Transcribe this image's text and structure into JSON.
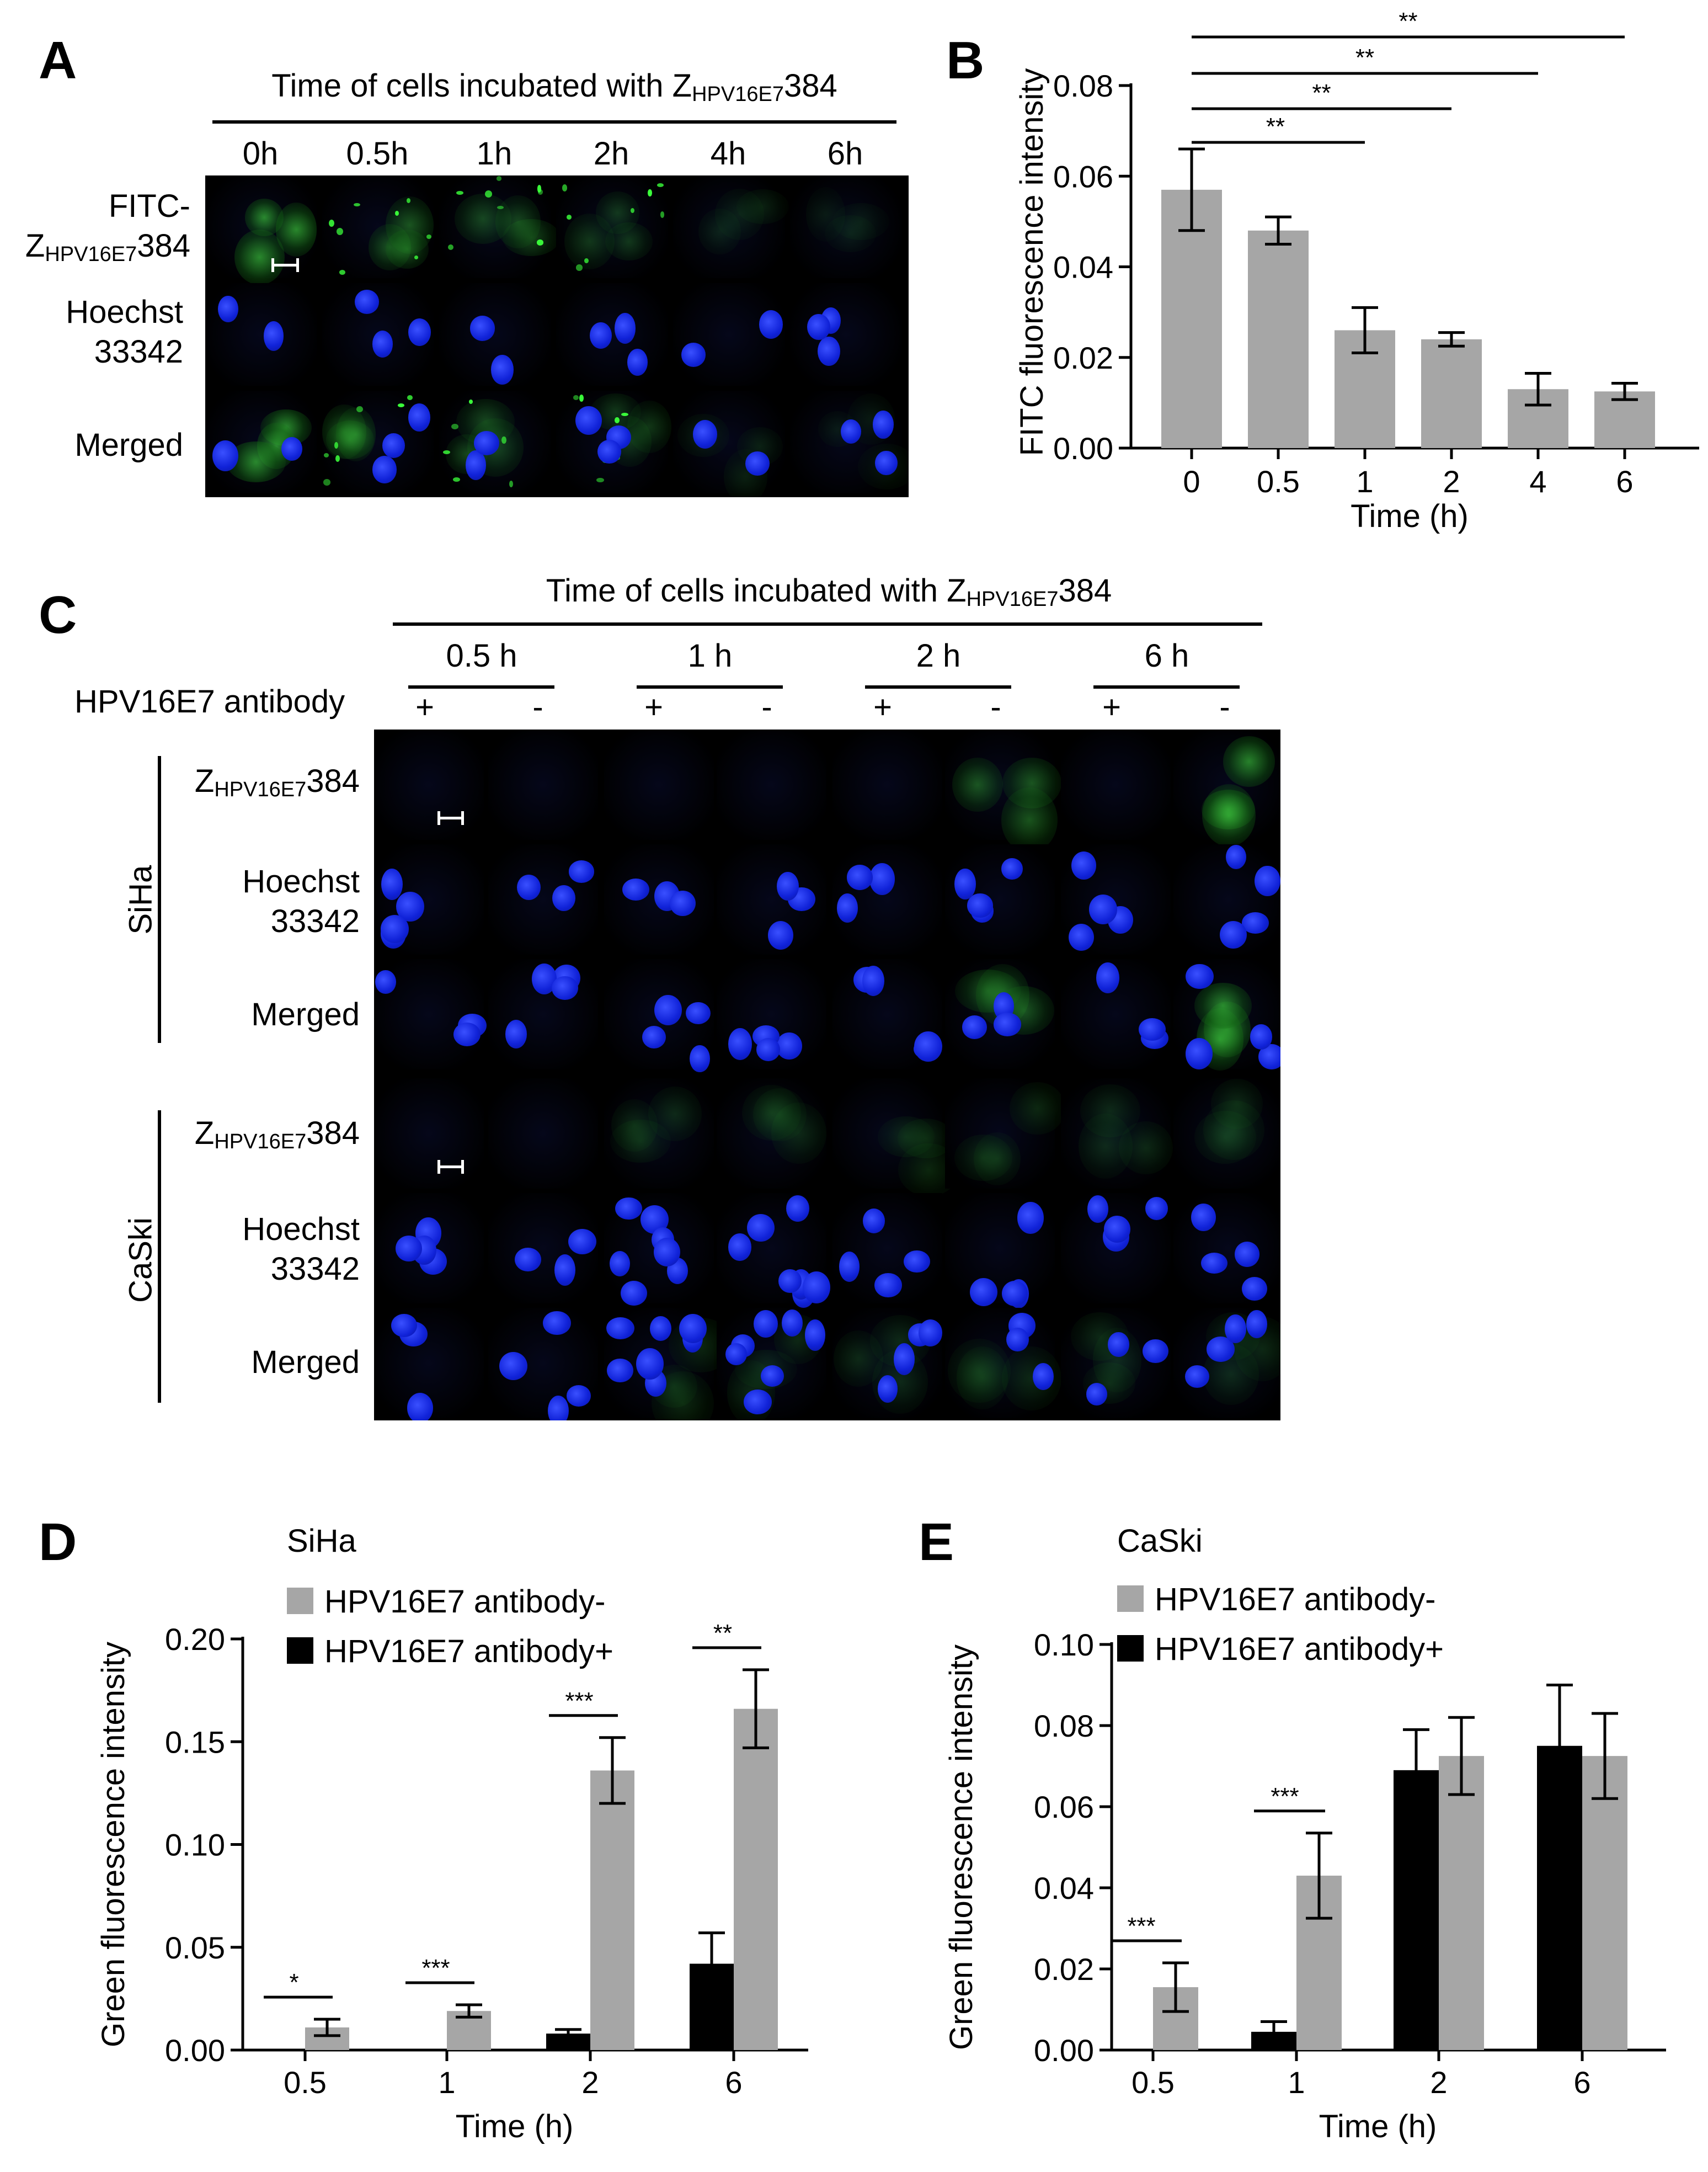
{
  "panels": {
    "A": {
      "letter": "A",
      "title_prefix": "Time of cells incubated with Z",
      "title_sub": "HPV16E7",
      "title_suffix": "384",
      "times": [
        "0h",
        "0.5h",
        "1h",
        "2h",
        "4h",
        "6h"
      ],
      "rows": [
        {
          "line1": "FITC-",
          "line2_prefix": "Z",
          "line2_sub": "HPV16E7",
          "line2_suffix": "384"
        },
        {
          "line1": "Hoechst",
          "line2": "33342"
        },
        {
          "line1": "Merged"
        }
      ]
    },
    "C": {
      "letter": "C",
      "title_prefix": "Time of cells incubated with Z",
      "title_sub": "HPV16E7",
      "title_suffix": "384",
      "times": [
        "0.5 h",
        "1 h",
        "2 h",
        "6 h"
      ],
      "antibody_label": "HPV16E7 antibody",
      "signs": [
        "+",
        "-",
        "+",
        "-",
        "+",
        "-",
        "+",
        "-"
      ],
      "cell_lines": [
        "SiHa",
        "CaSki"
      ],
      "rows": [
        {
          "prefix": "Z",
          "sub": "HPV16E7",
          "suffix": "384"
        },
        {
          "line1": "Hoechst",
          "line2": "33342"
        },
        {
          "line1": "Merged"
        }
      ]
    },
    "B_letter": "B",
    "D_letter": "D",
    "E_letter": "E"
  },
  "chart_data": [
    {
      "id": "B",
      "type": "bar",
      "ylabel": "FITC fluorescence intensity",
      "xlabel": "Time (h)",
      "categories": [
        "0",
        "0.5",
        "1",
        "2",
        "4",
        "6"
      ],
      "values": [
        0.057,
        0.048,
        0.026,
        0.024,
        0.013,
        0.0125
      ],
      "errors": [
        0.009,
        0.003,
        0.005,
        0.0015,
        0.0035,
        0.0018
      ],
      "ylim": [
        0,
        0.08
      ],
      "yticks": [
        "0.00",
        "0.02",
        "0.04",
        "0.06",
        "0.08"
      ],
      "bar_color": "#a6a6a6",
      "significance": [
        {
          "from": "0",
          "to": "1",
          "label": "**"
        },
        {
          "from": "0",
          "to": "2",
          "label": "**"
        },
        {
          "from": "0",
          "to": "4",
          "label": "**"
        },
        {
          "from": "0",
          "to": "6",
          "label": "**"
        }
      ]
    },
    {
      "id": "D",
      "type": "bar",
      "title": "SiHa",
      "ylabel": "Green fluorescence intensity",
      "xlabel": "Time (h)",
      "categories": [
        "0.5",
        "1",
        "2",
        "6"
      ],
      "series": [
        {
          "name": "HPV16E7 antibody+",
          "color": "#000000",
          "values": [
            0,
            0,
            0.008,
            0.042
          ],
          "errors": [
            0,
            0,
            0.002,
            0.015
          ]
        },
        {
          "name": "HPV16E7 antibody-",
          "color": "#a6a6a6",
          "values": [
            0.011,
            0.019,
            0.136,
            0.166
          ],
          "errors": [
            0.004,
            0.003,
            0.016,
            0.019
          ]
        }
      ],
      "legend_order": [
        "HPV16E7 antibody-",
        "HPV16E7 antibody+"
      ],
      "ylim": [
        0,
        0.2
      ],
      "yticks": [
        "0.00",
        "0.05",
        "0.10",
        "0.15",
        "0.20"
      ],
      "significance": [
        "*",
        "***",
        "***",
        "**"
      ]
    },
    {
      "id": "E",
      "type": "bar",
      "title": "CaSki",
      "ylabel": "Green fluorescence intensity",
      "xlabel": "Time (h)",
      "categories": [
        "0.5",
        "1",
        "2",
        "6"
      ],
      "series": [
        {
          "name": "HPV16E7 antibody+",
          "color": "#000000",
          "values": [
            0,
            0.0045,
            0.069,
            0.075
          ],
          "errors": [
            0,
            0.0025,
            0.01,
            0.015
          ]
        },
        {
          "name": "HPV16E7 antibody-",
          "color": "#a6a6a6",
          "values": [
            0.0155,
            0.043,
            0.0725,
            0.0725
          ],
          "errors": [
            0.006,
            0.0105,
            0.0095,
            0.0105
          ]
        }
      ],
      "legend_order": [
        "HPV16E7 antibody-",
        "HPV16E7 antibody+"
      ],
      "ylim": [
        0,
        0.1
      ],
      "yticks": [
        "0.00",
        "0.02",
        "0.04",
        "0.06",
        "0.08",
        "0.10"
      ],
      "significance": [
        "***",
        "***",
        "",
        ""
      ]
    }
  ]
}
